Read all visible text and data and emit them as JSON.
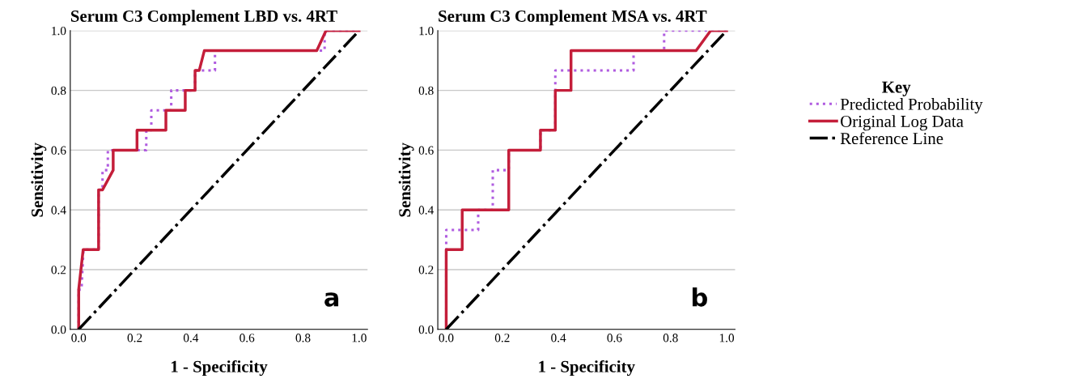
{
  "chart_data": [
    {
      "type": "line",
      "title": "Serum C3 Complement LBD vs. 4RT",
      "xlabel": "1 - Specificity",
      "ylabel": "Sensitivity",
      "xlim": [
        -0.03,
        1.03
      ],
      "ylim": [
        0,
        1.0
      ],
      "xticks": [
        {
          "value": 0,
          "label": "0.0"
        },
        {
          "value": 0.2,
          "label": "0.2"
        },
        {
          "value": 0.4,
          "label": "0.4"
        },
        {
          "value": 0.6,
          "label": "0.6"
        },
        {
          "value": 0.8,
          "label": "0.8"
        },
        {
          "value": 1,
          "label": "1.0"
        }
      ],
      "yticks": [
        {
          "value": 0,
          "label": "0.0"
        },
        {
          "value": 0.2,
          "label": "0.2"
        },
        {
          "value": 0.4,
          "label": "0.4"
        },
        {
          "value": 0.6,
          "label": "0.6"
        },
        {
          "value": 0.8,
          "label": "0.8"
        },
        {
          "value": 1,
          "label": "1.0"
        }
      ],
      "grid": "y",
      "annotations": [
        "a"
      ],
      "series": [
        {
          "color": "#b05ce0",
          "line_style": "dotted",
          "x": [
            0,
            0,
            0.01,
            0.017,
            0.071,
            0.071,
            0.085,
            0.085,
            0.104,
            0.104,
            0.241,
            0.241,
            0.259,
            0.259,
            0.33,
            0.33,
            0.38,
            0.38,
            0.415,
            0.415,
            0.43,
            0.43,
            0.486,
            0.486,
            0.5,
            0.849,
            0.877,
            0.877,
            1
          ],
          "values": [
            0,
            0.133,
            0.133,
            0.267,
            0.267,
            0.467,
            0.467,
            0.533,
            0.533,
            0.6,
            0.6,
            0.667,
            0.667,
            0.733,
            0.733,
            0.8,
            0.8,
            0.8,
            0.8,
            0.867,
            0.867,
            0.867,
            0.867,
            0.933,
            0.933,
            0.933,
            0.933,
            1.0,
            1.0
          ]
        },
        {
          "color": "#c41e3a",
          "line_style": "solid",
          "x": [
            0,
            0,
            0.016,
            0.071,
            0.071,
            0.085,
            0.123,
            0.123,
            0.208,
            0.208,
            0.311,
            0.311,
            0.38,
            0.38,
            0.415,
            0.415,
            0.43,
            0.448,
            0.849,
            0.882,
            1
          ],
          "values": [
            0,
            0.133,
            0.267,
            0.267,
            0.467,
            0.467,
            0.533,
            0.6,
            0.6,
            0.667,
            0.667,
            0.733,
            0.733,
            0.8,
            0.8,
            0.867,
            0.867,
            0.933,
            0.933,
            1.0,
            1.0
          ]
        },
        {
          "color": "#000000",
          "line_style": "dashdot",
          "x": [
            0,
            1
          ],
          "values": [
            0,
            1
          ]
        }
      ]
    },
    {
      "type": "line",
      "title": "Serum C3 Complement MSA vs. 4RT",
      "xlabel": "1 - Specificity",
      "ylabel": "Sensitivity",
      "xlim": [
        -0.03,
        1.03
      ],
      "ylim": [
        0,
        1.0
      ],
      "xticks": [
        {
          "value": 0,
          "label": "0.0"
        },
        {
          "value": 0.2,
          "label": "0.2"
        },
        {
          "value": 0.4,
          "label": "0.4"
        },
        {
          "value": 0.6,
          "label": "0.6"
        },
        {
          "value": 0.8,
          "label": "0.8"
        },
        {
          "value": 1,
          "label": "1.0"
        }
      ],
      "yticks": [
        {
          "value": 0,
          "label": "0.0"
        },
        {
          "value": 0.2,
          "label": "0.2"
        },
        {
          "value": 0.4,
          "label": "0.4"
        },
        {
          "value": 0.6,
          "label": "0.6"
        },
        {
          "value": 0.8,
          "label": "0.8"
        },
        {
          "value": 1,
          "label": "1.0"
        }
      ],
      "grid": "y",
      "legend": "right",
      "legend_title": "Key",
      "annotations": [
        "b"
      ],
      "series": [
        {
          "name": "Predicted Probability",
          "color": "#b05ce0",
          "line_style": "dotted",
          "x": [
            0,
            0,
            0,
            0.114,
            0.114,
            0.166,
            0.166,
            0.223,
            0.223,
            0.336,
            0.336,
            0.389,
            0.389,
            0.389,
            0.668,
            0.668,
            0.777,
            0.777,
            1
          ],
          "values": [
            0,
            0.267,
            0.333,
            0.333,
            0.4,
            0.4,
            0.533,
            0.533,
            0.6,
            0.6,
            0.667,
            0.667,
            0.8,
            0.867,
            0.867,
            0.933,
            0.933,
            1.0,
            1.0
          ]
        },
        {
          "name": "Original Log Data",
          "color": "#c41e3a",
          "line_style": "solid",
          "x": [
            0,
            0,
            0.057,
            0.057,
            0.223,
            0.223,
            0.336,
            0.336,
            0.389,
            0.389,
            0.445,
            0.445,
            0.891,
            0.943,
            1
          ],
          "values": [
            0,
            0.267,
            0.267,
            0.4,
            0.4,
            0.6,
            0.6,
            0.667,
            0.667,
            0.8,
            0.8,
            0.933,
            0.933,
            1.0,
            1.0
          ]
        },
        {
          "name": "Reference Line",
          "color": "#000000",
          "line_style": "dashdot",
          "x": [
            0,
            1
          ],
          "values": [
            0,
            1
          ]
        }
      ]
    }
  ]
}
